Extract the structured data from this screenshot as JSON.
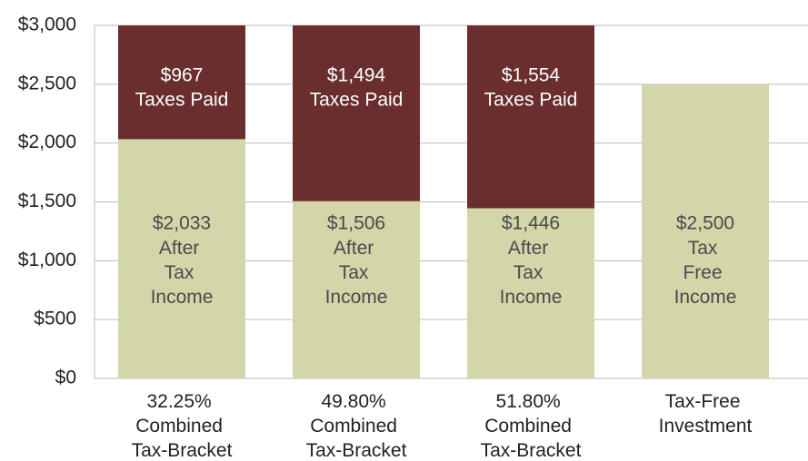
{
  "chart_data": {
    "type": "stacked_bar",
    "categories": [
      "32.25%\nCombined\nTax-Bracket",
      "49.80%\nCombined\nTax-Bracket",
      "51.80%\nCombined\nTax-Bracket",
      "Tax-Free\nInvestment"
    ],
    "series": [
      {
        "color": "#d3d6a8",
        "text_color": "#4a4a4a",
        "values": [
          2033,
          1506,
          1446,
          2500
        ],
        "value_labels": [
          "$2,033",
          "$1,506",
          "$1,446",
          "$2,500"
        ],
        "labels": [
          "After\nTax\nIncome",
          "After\nTax\nIncome",
          "After\nTax\nIncome",
          "Tax\nFree\nIncome"
        ]
      },
      {
        "color": "#6b2e2e",
        "text_color": "#ffffff",
        "values": [
          967,
          1494,
          1554,
          null
        ],
        "value_labels": [
          "$967",
          "$1,494",
          "$1,554",
          null
        ],
        "labels": [
          "Taxes Paid",
          "Taxes Paid",
          "Taxes Paid",
          null
        ]
      }
    ],
    "ylim": [
      0,
      3000
    ],
    "yticks": [
      {
        "value": 0,
        "label": "$0"
      },
      {
        "value": 500,
        "label": "$500"
      },
      {
        "value": 1000,
        "label": "$1,000"
      },
      {
        "value": 1500,
        "label": "$1,500"
      },
      {
        "value": 2000,
        "label": "$2,000"
      },
      {
        "value": 2500,
        "label": "$2,500"
      },
      {
        "value": 3000,
        "label": "$3,000"
      }
    ],
    "grid": true
  }
}
